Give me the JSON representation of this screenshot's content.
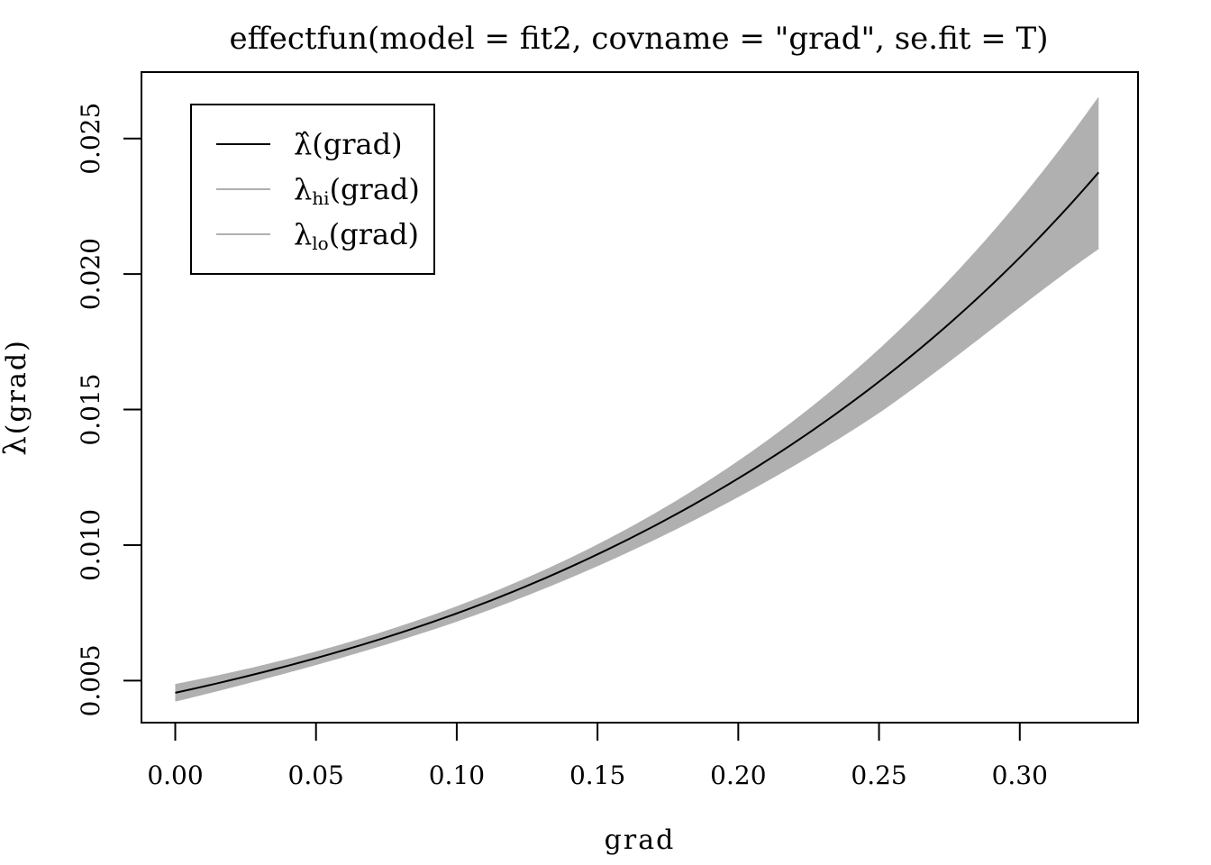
{
  "chart_data": {
    "type": "line",
    "title": "effectfun(model = fit2, covname = \"grad\", se.fit = T)",
    "xlabel": "grad",
    "ylabel": {
      "symbol": "λ",
      "arg": "(grad)"
    },
    "xlim": [
      -0.012,
      0.342
    ],
    "ylim": [
      0.00345,
      0.02745
    ],
    "x_ticks": [
      0.0,
      0.05,
      0.1,
      0.15,
      0.2,
      0.25,
      0.3
    ],
    "x_tick_labels": [
      "0.00",
      "0.05",
      "0.10",
      "0.15",
      "0.20",
      "0.25",
      "0.30"
    ],
    "y_ticks": [
      0.005,
      0.01,
      0.015,
      0.02,
      0.025
    ],
    "y_tick_labels": [
      "0.005",
      "0.010",
      "0.015",
      "0.020",
      "0.025"
    ],
    "x": [
      0.0,
      0.05,
      0.1,
      0.15,
      0.2,
      0.25,
      0.3,
      0.328
    ],
    "series": [
      {
        "name": "λ̂(grad)",
        "role": "estimate",
        "color": "#000000",
        "values": [
          0.00455,
          0.00583,
          0.00748,
          0.00966,
          0.01246,
          0.01603,
          0.02061,
          0.02375
        ]
      },
      {
        "name": "λhi(grad)",
        "role": "upper",
        "color": "#b0b0b0",
        "values": [
          0.00485,
          0.00605,
          0.00772,
          0.01,
          0.01308,
          0.0172,
          0.0227,
          0.0265
        ]
      },
      {
        "name": "λlo(grad)",
        "role": "lower",
        "color": "#b0b0b0",
        "values": [
          0.00425,
          0.0056,
          0.0072,
          0.00925,
          0.0118,
          0.0149,
          0.0188,
          0.02095
        ]
      }
    ],
    "band_color": "#b0b0b0",
    "grid": false,
    "legend": {
      "position": "top-left",
      "entries": [
        {
          "symbol": "λ̂",
          "sub": "",
          "arg": "(grad)",
          "color": "#000000"
        },
        {
          "symbol": "λ",
          "sub": "hi",
          "arg": "(grad)",
          "color": "#b0b0b0"
        },
        {
          "symbol": "λ",
          "sub": "lo",
          "arg": "(grad)",
          "color": "#b0b0b0"
        }
      ]
    }
  }
}
